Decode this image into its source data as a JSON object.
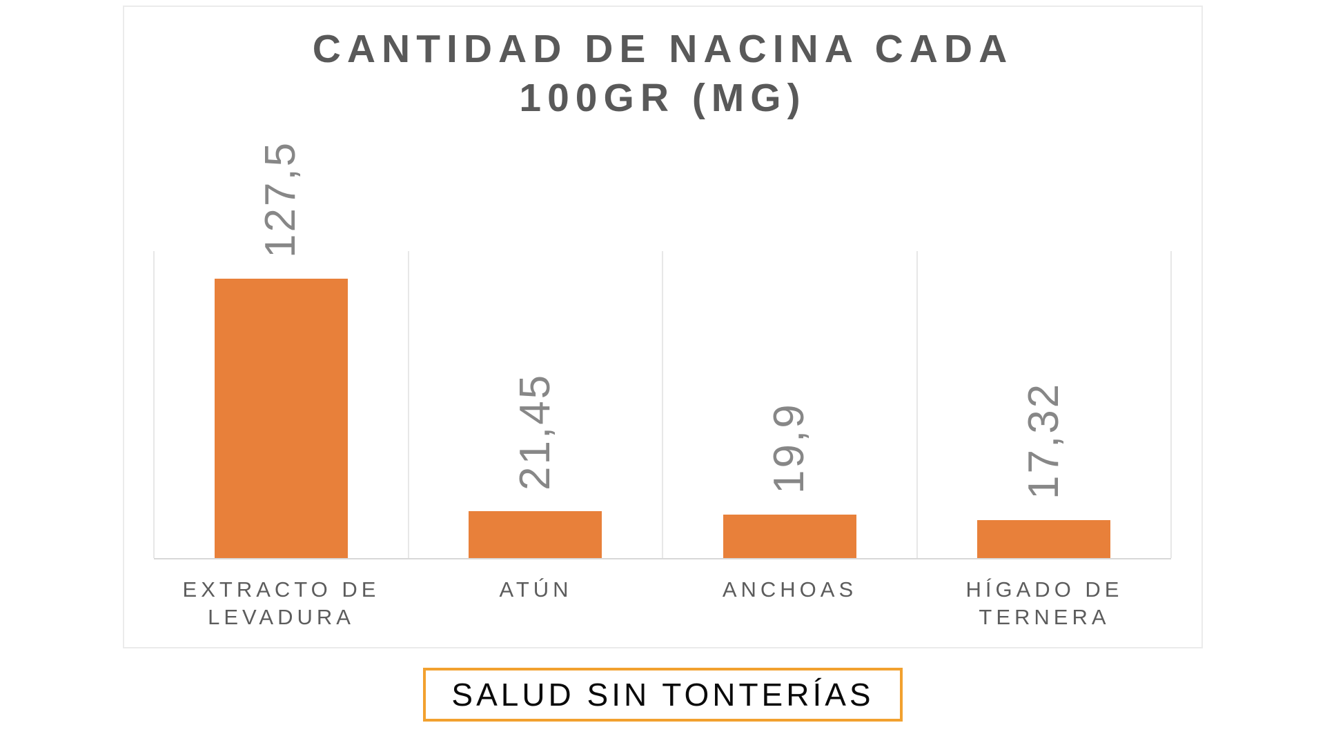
{
  "chart_data": {
    "type": "bar",
    "title": "CANTIDAD DE NACINA CADA 100GR (MG)",
    "title_lines": [
      "CANTIDAD DE NACINA CADA",
      "100GR (MG)"
    ],
    "categories": [
      "EXTRACTO DE\nLEVADURA",
      "ATÚN",
      "ANCHOAS",
      "HÍGADO DE\nTERNERA"
    ],
    "values": [
      127.5,
      21.45,
      19.9,
      17.32
    ],
    "value_labels": [
      "127,5",
      "21,45",
      "19,9",
      "17,32"
    ],
    "ylabel": "",
    "xlabel": "",
    "unit": "mg per 100 g",
    "ylim": [
      0,
      140
    ],
    "grid": "vertical-gridlines-only",
    "legend_position": "none",
    "value_label_rotation_deg": -90,
    "bar_color": "#e8803a",
    "value_label_color": "#878787",
    "title_color": "#595959",
    "category_label_color": "#5c5c5c",
    "gridline_color": "#e7e7e7"
  },
  "badge": {
    "label": "SALUD SIN TONTERÍAS",
    "border_color": "#f2a12f",
    "text_color": "#0a0a0a"
  }
}
